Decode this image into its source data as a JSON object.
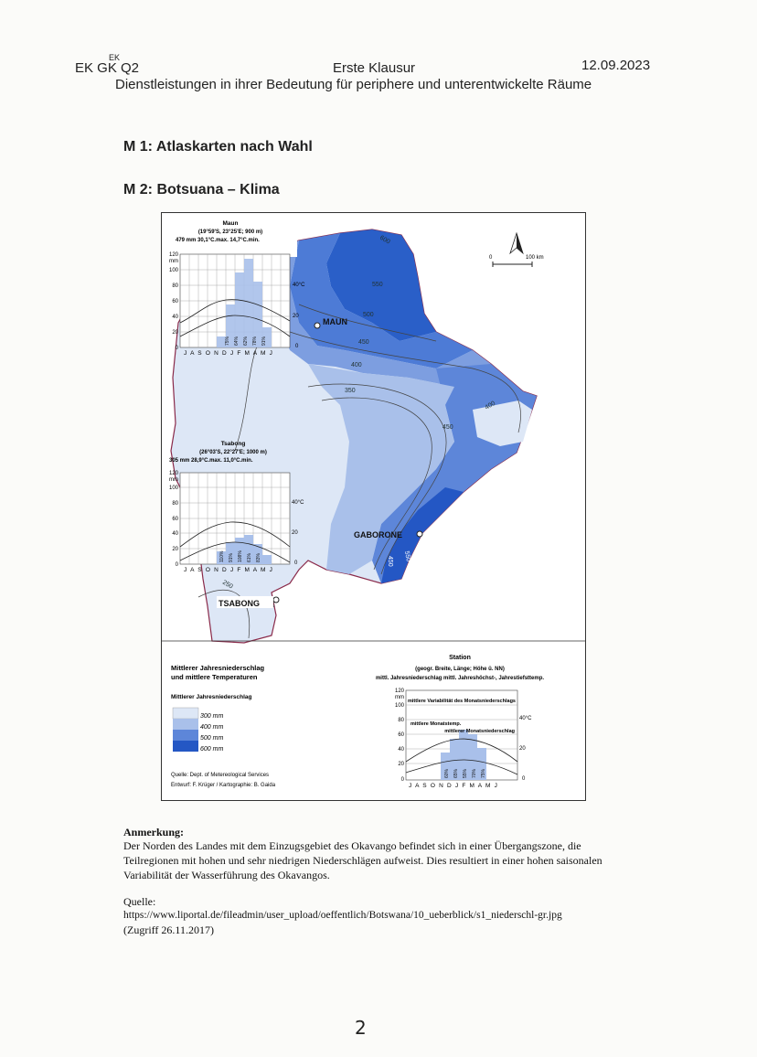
{
  "header": {
    "course": "EK GK Q2",
    "course_superscript": "EK",
    "exam": "Erste Klausur",
    "date": "12.09.2023",
    "subtitle": "Dienstleistungen in ihrer Bedeutung für periphere und unterentwickelte Räume"
  },
  "m1": "M 1: Atlaskarten nach Wahl",
  "m2": "M 2: Botsuana – Klima",
  "map": {
    "scale": "100 km",
    "scale_zero": "0",
    "cities": [
      "MAUN",
      "GABORONE",
      "TSABONG"
    ],
    "isohyets": [
      "600",
      "550",
      "500",
      "450",
      "400",
      "350",
      "300",
      "250"
    ],
    "maun": {
      "title": "Maun",
      "coords": "(19°59'S, 23°25'E; 900 m)",
      "stats": "479 mm  30,1°C.max.  14,7°C.min.",
      "months": "J A S O N D J F M A M J",
      "variability": [
        "75%",
        "64%",
        "62%",
        "78%",
        "91%"
      ]
    },
    "tsabong": {
      "title": "Tsabong",
      "coords": "(26°03'S, 22°27'E; 1000 m)",
      "stats": "305 mm  28,9°C.max.  11,0°C.min.",
      "months": "J A S O N D J F M A M J",
      "variability": [
        "110%",
        "91%",
        "108%",
        "61%",
        "83%"
      ]
    },
    "temp_ticks": [
      "40°C",
      "20",
      "0"
    ],
    "precip_ticks": [
      "120",
      "mm",
      "100",
      "80",
      "60",
      "40",
      "20",
      "0"
    ]
  },
  "legend": {
    "title_line1": "Mittlerer Jahresniederschlag",
    "title_line2": "und mittlere Temperaturen",
    "subtitle": "Mittlerer Jahresniederschlag",
    "classes": [
      {
        "label": "300 mm",
        "color": "#dde7f6"
      },
      {
        "label": "400 mm",
        "color": "#a9c0ea"
      },
      {
        "label": "500 mm",
        "color": "#5d86d9"
      },
      {
        "label": "600 mm",
        "color": "#2457c4"
      }
    ],
    "source1": "Quelle: Dept. of Metereological Services",
    "source2": "Entwurf: F. Krüger / Kartographie: B. Gaida",
    "station_title": "Station",
    "station_line1": "(geogr. Breite, Länge; Höhe ü. NN)",
    "station_line2": "mittl. Jahresniederschlag  mittl. Jahreshöchst-, Jahrestiefsttemp.",
    "station_labels": [
      "mittlere Variabilität des Monatsniederschlags",
      "mittlere Monatstemp.",
      "mittlerer Monatsniederschlag"
    ],
    "station_ticks_right": [
      "40°C",
      "20",
      "0"
    ],
    "station_months": "J A S O N D J F M A M J",
    "station_variability": [
      "60%",
      "65%",
      "55%",
      "70%",
      "75%"
    ]
  },
  "note": {
    "heading": "Anmerkung:",
    "line1": "Der Norden des Landes mit dem Einzugsgebiet des Okavango befindet sich in einer Übergangszone, die",
    "line2": "Teilregionen mit hohen und sehr niedrigen Niederschlägen aufweist. Dies resultiert in einer hohen saisonalen",
    "line3": "Variabilität der Wasserführung des Okavangos."
  },
  "source": {
    "heading": "Quelle:",
    "url": "https://www.liportal.de/fileadmin/user_upload/oeffentlich/Botswana/10_ueberblick/s1_niederschl-gr.jpg",
    "accessed": "(Zugriff 26.11.2017)"
  },
  "page_number": "2"
}
